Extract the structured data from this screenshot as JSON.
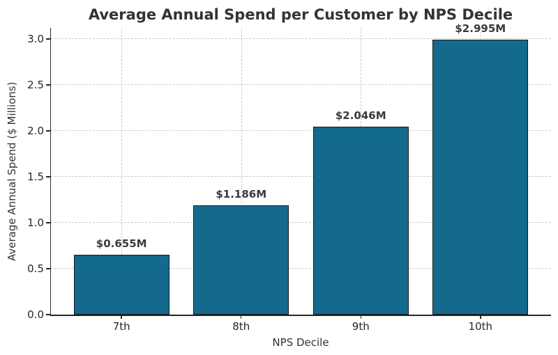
{
  "chart_data": {
    "type": "bar",
    "title": "Average Annual Spend per Customer by NPS Decile",
    "xlabel": "NPS Decile",
    "ylabel": "Average Annual Spend ($ Millions)",
    "categories": [
      "7th",
      "8th",
      "9th",
      "10th"
    ],
    "values": [
      0.655,
      1.186,
      2.046,
      2.995
    ],
    "bar_labels": [
      "$0.655M",
      "$1.186M",
      "$2.046M",
      "$2.995M"
    ],
    "yticks": [
      0.0,
      0.5,
      1.0,
      1.5,
      2.0,
      2.5,
      3.0
    ],
    "ytick_labels": [
      "0.0",
      "0.5",
      "1.0",
      "1.5",
      "2.0",
      "2.5",
      "3.0"
    ],
    "ylim": [
      0,
      3.12
    ],
    "xlim": [
      -0.59,
      3.59
    ],
    "bar_width_units": 0.8,
    "grid": true,
    "grid_style": "dashed",
    "legend": "none",
    "colors": {
      "bar_fill": "#136a8c",
      "bar_edge": "#1a1a1a",
      "grid": "#c9c9c9",
      "spine": "#262626",
      "text": "#333333",
      "background": "#ffffff"
    }
  }
}
